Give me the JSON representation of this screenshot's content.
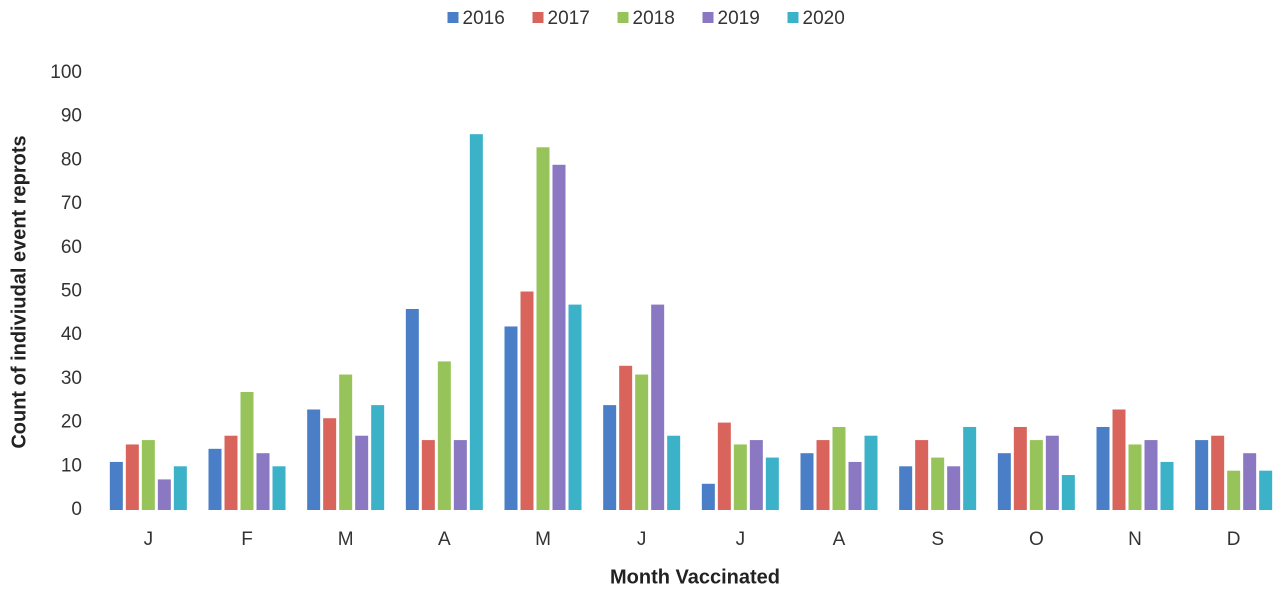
{
  "chart_data": {
    "type": "bar",
    "xlabel": "Month Vaccinated",
    "ylabel": "Count of indiviudal event reprots",
    "categories": [
      "J",
      "F",
      "M",
      "A",
      "M",
      "J",
      "J",
      "A",
      "S",
      "O",
      "N",
      "D"
    ],
    "series": [
      {
        "name": "2016",
        "color": "#4a7fc8",
        "values": [
          11,
          14,
          23,
          46,
          42,
          24,
          6,
          13,
          10,
          13,
          19,
          16
        ]
      },
      {
        "name": "2017",
        "color": "#d9645c",
        "values": [
          15,
          17,
          21,
          16,
          50,
          33,
          20,
          16,
          16,
          19,
          23,
          17
        ]
      },
      {
        "name": "2018",
        "color": "#97c45a",
        "values": [
          16,
          27,
          31,
          34,
          83,
          31,
          15,
          19,
          12,
          16,
          15,
          9
        ]
      },
      {
        "name": "2019",
        "color": "#8a78c2",
        "values": [
          7,
          13,
          17,
          16,
          79,
          47,
          16,
          11,
          10,
          17,
          16,
          13
        ]
      },
      {
        "name": "2020",
        "color": "#3bb2c8",
        "values": [
          10,
          10,
          24,
          86,
          47,
          17,
          12,
          17,
          19,
          8,
          11,
          9
        ]
      }
    ],
    "ylim": [
      0,
      100
    ],
    "yticks": [
      0,
      10,
      20,
      30,
      40,
      50,
      60,
      70,
      80,
      90,
      100
    ],
    "grid": false,
    "legend": "top"
  }
}
